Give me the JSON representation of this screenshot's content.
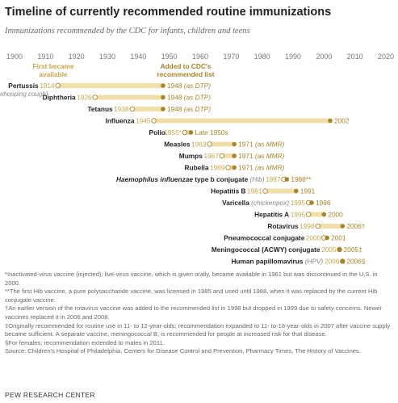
{
  "title": "Timeline of currently recommended routine immunizations",
  "subtitle": "Immunizations recommended by the CDC for infants, children and teens",
  "legend": {
    "first_available": "First became available",
    "added_cdc": "Added to CDC's recommended list"
  },
  "colors": {
    "bar": "#f1dfab",
    "dot": "#a98327",
    "first_text": "#c9a64a",
    "added_text": "#a98327",
    "note_text": "#888888",
    "axis_text": "#777777"
  },
  "chart_data": {
    "type": "timeline",
    "xlim": [
      1900,
      2020
    ],
    "xticks": [
      "1900",
      "1910",
      "1920",
      "1930",
      "1940",
      "1950",
      "1960",
      "1970",
      "1980",
      "1990",
      "2000",
      "2010",
      "2020"
    ],
    "rows": [
      {
        "name": "Pertussis",
        "name_note": "(whooping cough)",
        "available": 1914,
        "available_label": "1914",
        "added": 1948,
        "added_label": "1948",
        "added_note": "(as DTP)"
      },
      {
        "name": "Diphtheria",
        "name_note": "",
        "available": 1926,
        "available_label": "1926",
        "added": 1948,
        "added_label": "1948",
        "added_note": "(as DTP)"
      },
      {
        "name": "Tetanus",
        "name_note": "",
        "available": 1938,
        "available_label": "1938",
        "added": 1948,
        "added_label": "1948",
        "added_note": "(as DTP)"
      },
      {
        "name": "Influenza",
        "name_note": "",
        "available": 1945,
        "available_label": "1945",
        "added": 2002,
        "added_label": "2002",
        "added_note": ""
      },
      {
        "name": "Polio",
        "name_note": "",
        "available": 1955,
        "available_label": "1955*",
        "added": 1957,
        "added_label": "Late 1950s",
        "added_note": ""
      },
      {
        "name": "Measles",
        "name_note": "",
        "available": 1963,
        "available_label": "1963",
        "added": 1971,
        "added_label": "1971",
        "added_note": "(as MMR)"
      },
      {
        "name": "Mumps",
        "name_note": "",
        "available": 1967,
        "available_label": "1967",
        "added": 1971,
        "added_label": "1971",
        "added_note": "(as MMR)"
      },
      {
        "name": "Rubella",
        "name_note": "",
        "available": 1969,
        "available_label": "1969",
        "added": 1971,
        "added_label": "1971",
        "added_note": "(as MMR)"
      },
      {
        "name": "Haemophilus influenzae type b conjugate",
        "name_italic": true,
        "name_note": "(Hib)",
        "available": 1987,
        "available_label": "1987",
        "added": 1988,
        "added_label": "1988**",
        "added_note": ""
      },
      {
        "name": "Hepatitis B",
        "name_note": "",
        "available": 1981,
        "available_label": "1981",
        "added": 1991,
        "added_label": "1991",
        "added_note": ""
      },
      {
        "name": "Varicella",
        "name_note": "(chickenpox)",
        "available": 1995,
        "available_label": "1995",
        "added": 1996,
        "added_label": "1996",
        "added_note": ""
      },
      {
        "name": "Hepatitis A",
        "name_note": "",
        "available": 1995,
        "available_label": "1995",
        "added": 2000,
        "added_label": "2000",
        "added_note": ""
      },
      {
        "name": "Rotavirus",
        "name_note": "",
        "available": 1998,
        "available_label": "1998",
        "added": 2006,
        "added_label": "2006†",
        "added_note": ""
      },
      {
        "name": "Pneumococcal conjugate",
        "name_note": "",
        "available": 2000,
        "available_label": "2000",
        "added": 2001,
        "added_label": "2001",
        "added_note": ""
      },
      {
        "name": "Meningococcal (ACWY) conjugate",
        "name_note": "",
        "available": 2005,
        "available_label": "2005",
        "added": 2005,
        "added_label": "2005‡",
        "added_note": ""
      },
      {
        "name": "Human papillomavirus",
        "name_note": "(HPV)",
        "available": 2006,
        "available_label": "2006",
        "added": 2006,
        "added_label": "2006§",
        "added_note": ""
      }
    ]
  },
  "notes": [
    "*Inactivated-virus vaccine (injected); live-virus vaccine, which is given orally, became available in 1961 but was discontinued in the U.S. in 2000.",
    "**The first Hib vaccine, a pure polysaccharide vaccine, was licensed in 1985 and used until 1988, when it was replaced by the current Hib conjugate vaccine.",
    "†An earlier version of the rotavirus vaccine was added to the recommended list in 1998 but dropped in 1999 due to safety concerns. Newer vaccines replaced it in 2006 and 2008.",
    "‡Originally recommended for routine use in 11- to 12-year-olds; recommendation expanded to 11- to-18-year-olds in 2007 after vaccine supply became sufficient. A separate vaccine, meningococcal B, is recommended for people at increased risk for that disease.",
    "§For females; recommendation extended to males in 2011.",
    "Source: Children's Hospital of Philadelphia, Centers for Disease Control and Prevention, Pharmacy Times, The History of Vaccines."
  ],
  "org": "PEW RESEARCH CENTER"
}
